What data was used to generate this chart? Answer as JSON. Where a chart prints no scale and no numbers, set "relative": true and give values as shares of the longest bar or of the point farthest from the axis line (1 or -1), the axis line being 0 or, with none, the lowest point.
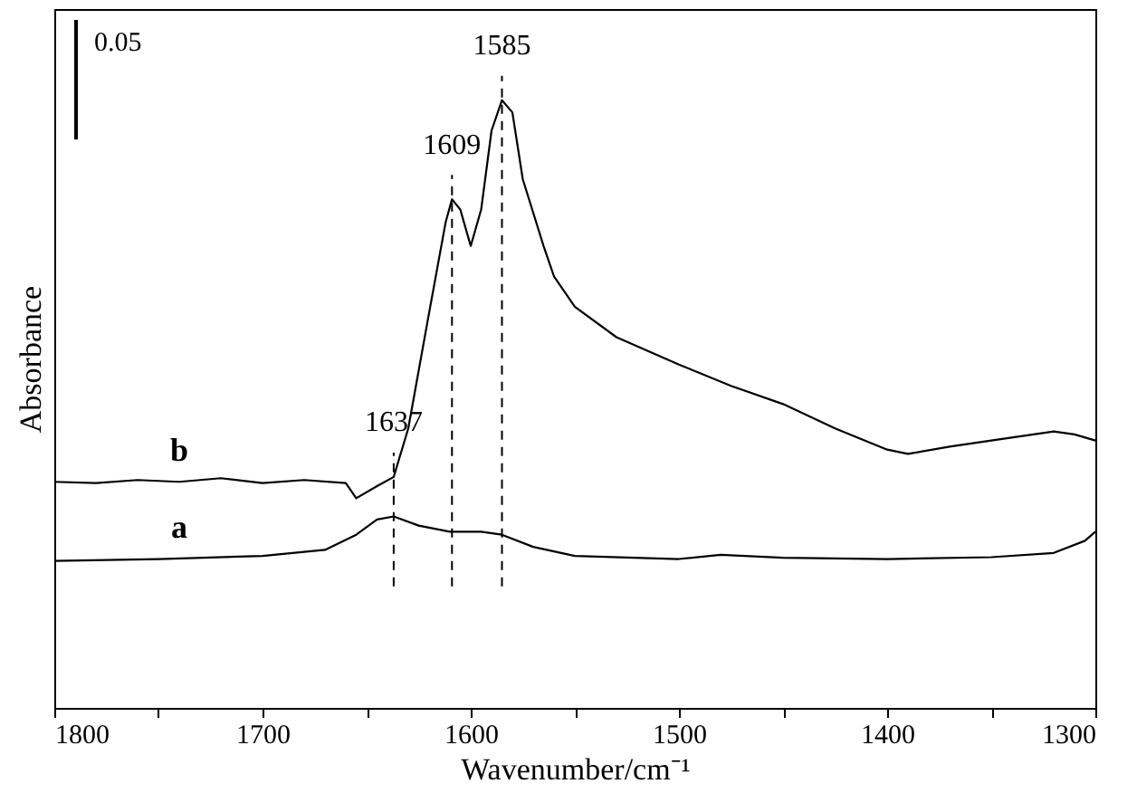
{
  "chart_data": {
    "type": "line",
    "relative": true,
    "xlabel": "Wavenumber/cm⁻¹",
    "ylabel": "Absorbance",
    "xlim": [
      1800,
      1300
    ],
    "xticks": [
      1800,
      {
        "value": 1750,
        "label": null
      },
      1700,
      {
        "value": 1650,
        "label": null
      },
      1600,
      {
        "value": 1550,
        "label": null
      },
      1500,
      {
        "value": 1450,
        "label": null
      },
      1400,
      {
        "value": 1350,
        "label": null
      },
      1300
    ],
    "series": [
      {
        "name": "a",
        "color": "#000000",
        "x": [
          1800,
          1750,
          1700,
          1670,
          1655,
          1645,
          1637,
          1625,
          1610,
          1595,
          1585,
          1570,
          1550,
          1500,
          1480,
          1450,
          1400,
          1350,
          1320,
          1305,
          1300
        ],
        "values": [
          0.242,
          0.245,
          0.25,
          0.26,
          0.285,
          0.31,
          0.315,
          0.3,
          0.29,
          0.29,
          0.285,
          0.265,
          0.25,
          0.245,
          0.252,
          0.247,
          0.245,
          0.248,
          0.255,
          0.275,
          0.29
        ]
      },
      {
        "name": "b",
        "color": "#000000",
        "x": [
          1800,
          1780,
          1760,
          1740,
          1720,
          1700,
          1680,
          1660,
          1655,
          1645,
          1637,
          1630,
          1620,
          1612,
          1609,
          1605,
          1600,
          1595,
          1590,
          1585,
          1580,
          1575,
          1565,
          1560,
          1550,
          1530,
          1500,
          1475,
          1450,
          1425,
          1400,
          1390,
          1370,
          1350,
          1320,
          1310,
          1300
        ],
        "values": [
          0.372,
          0.37,
          0.375,
          0.372,
          0.378,
          0.37,
          0.375,
          0.37,
          0.345,
          0.365,
          0.38,
          0.46,
          0.65,
          0.8,
          0.837,
          0.82,
          0.76,
          0.82,
          0.95,
          1.0,
          0.98,
          0.87,
          0.76,
          0.71,
          0.66,
          0.61,
          0.565,
          0.53,
          0.5,
          0.46,
          0.425,
          0.418,
          0.43,
          0.44,
          0.455,
          0.45,
          0.44
        ]
      }
    ],
    "ref_lines": [
      {
        "axis": "x",
        "value": 1637,
        "label": "1637",
        "line_style": "dashed"
      },
      {
        "axis": "x",
        "value": 1609,
        "label": "1609",
        "line_style": "dashed"
      },
      {
        "axis": "x",
        "value": 1585,
        "label": "1585",
        "line_style": "dashed"
      }
    ],
    "annotations": [
      "0.05"
    ],
    "line_style": "solid",
    "marker": "none"
  }
}
